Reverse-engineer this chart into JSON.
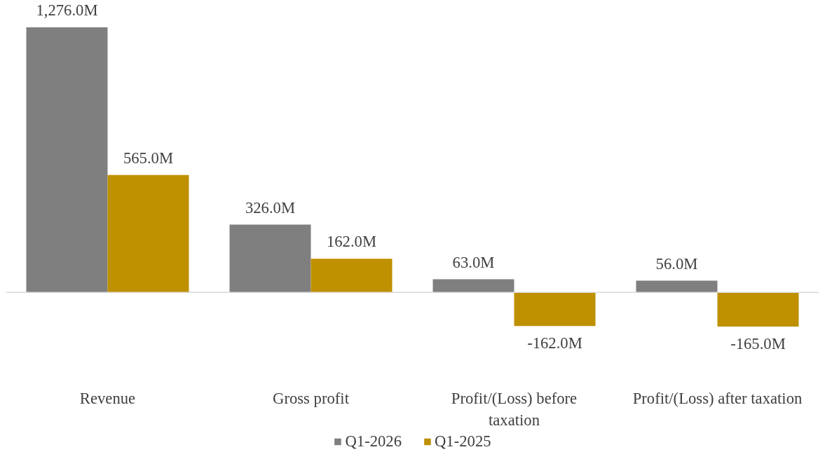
{
  "chart_data": {
    "type": "bar",
    "categories": [
      "Revenue",
      "Gross profit",
      "Profit/(Loss) before taxation",
      "Profit/(Loss) after taxation"
    ],
    "series": [
      {
        "name": "Q1-2026",
        "color": "#7f7f7f",
        "values": [
          1276,
          326,
          63,
          56
        ],
        "value_labels": [
          "1,276.0M",
          "326.0M",
          "63.0M",
          "56.0M"
        ]
      },
      {
        "name": "Q1-2025",
        "color": "#bf9000",
        "values": [
          565,
          162,
          -162,
          -165
        ],
        "value_labels": [
          "565.0M",
          "162.0M",
          "-162.0M",
          "-165.0M"
        ]
      }
    ],
    "legend": "bottom",
    "grid": false
  }
}
